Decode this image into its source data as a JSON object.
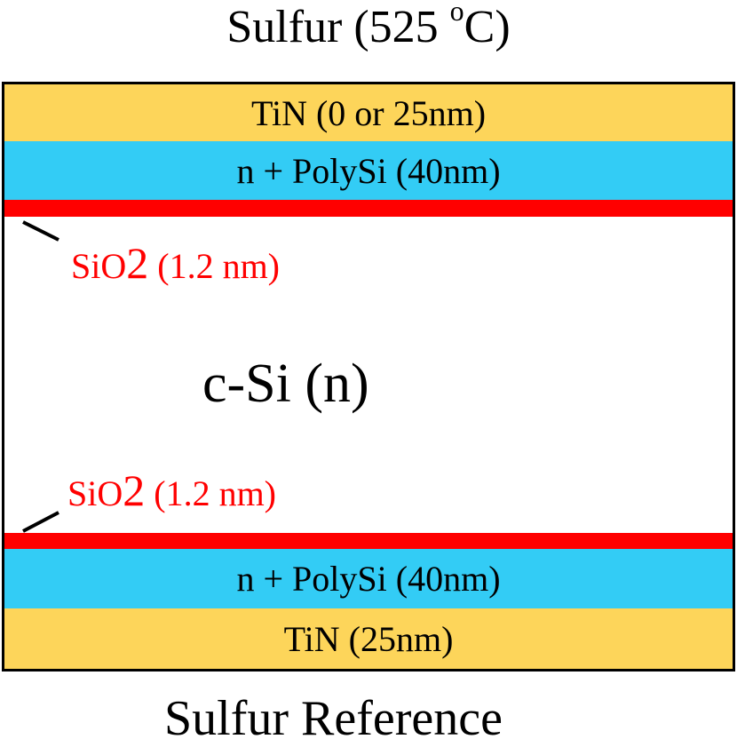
{
  "header": {
    "title_main": "Sulfur (525 ",
    "title_sup": "o",
    "title_end": "C)"
  },
  "footer": {
    "title": "Sulfur Reference"
  },
  "colors": {
    "tin": "#fdd55a",
    "polysi": "#33ccf5",
    "oxide": "#ff0000",
    "substrate": "#ffffff"
  },
  "layers": {
    "tin_top": "TiN (0 or 25nm)",
    "poly_top": "n + PolySi (40nm)",
    "oxide_top": {
      "prefix": "SiO",
      "sub": "2",
      "suffix": " (1.2 nm)"
    },
    "substrate": "c-Si (n)",
    "oxide_bot": {
      "prefix": "SiO",
      "sub": "2",
      "suffix": " (1.2 nm)"
    },
    "poly_bot": "n + PolySi (40nm)",
    "tin_bot": "TiN (25nm)"
  }
}
